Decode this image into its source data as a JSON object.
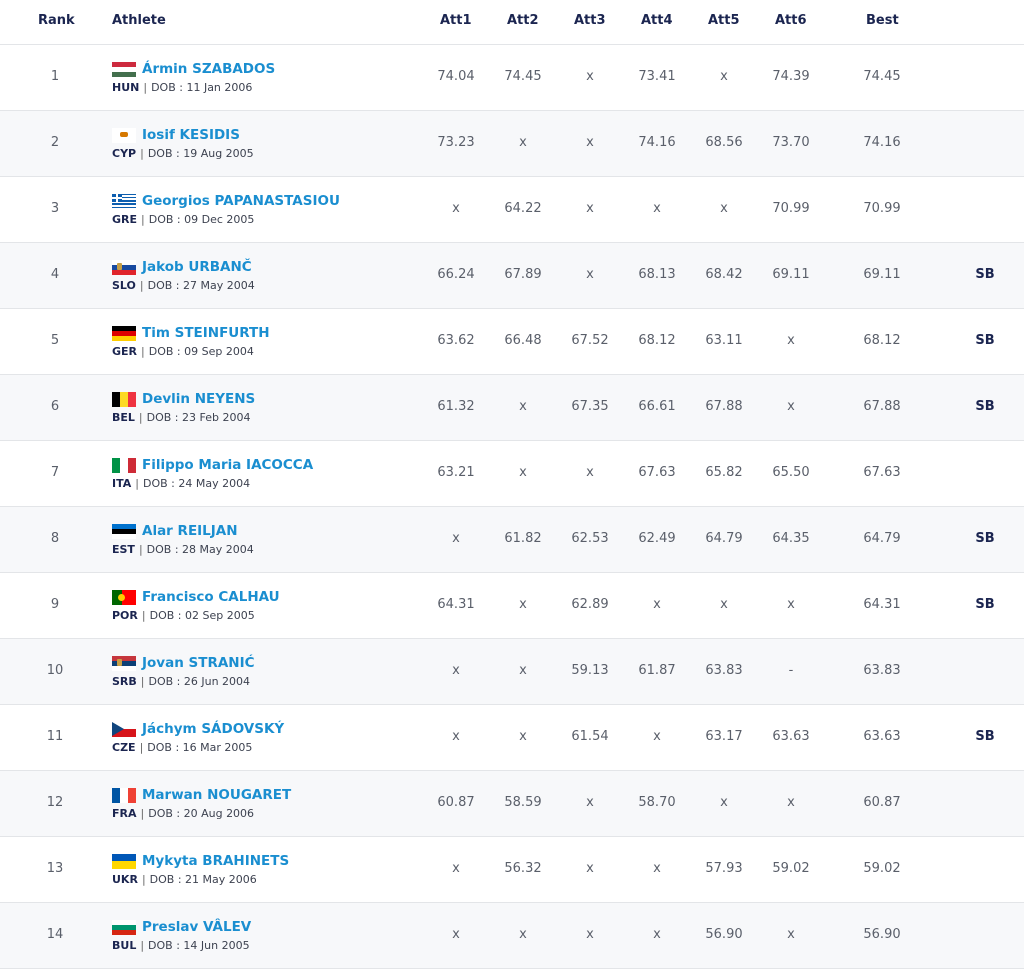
{
  "headers": {
    "rank": "Rank",
    "athlete": "Athlete",
    "att1": "Att1",
    "att2": "Att2",
    "att3": "Att3",
    "att4": "Att4",
    "att5": "Att5",
    "att6": "Att6",
    "best": "Best"
  },
  "dob_label": "DOB : ",
  "colors": {
    "name_link": "#1a8ed0",
    "header_text": "#1b2550",
    "cell_text": "#5a5f6a"
  },
  "rows": [
    {
      "rank": "1",
      "name": "Ármin SZABADOS",
      "nat": "HUN",
      "dob": "11 Jan 2006",
      "att": [
        "74.04",
        "74.45",
        "x",
        "73.41",
        "x",
        "74.39"
      ],
      "best": "74.45",
      "note": ""
    },
    {
      "rank": "2",
      "name": "Iosif KESIDIS",
      "nat": "CYP",
      "dob": "19 Aug 2005",
      "att": [
        "73.23",
        "x",
        "x",
        "74.16",
        "68.56",
        "73.70"
      ],
      "best": "74.16",
      "note": ""
    },
    {
      "rank": "3",
      "name": "Georgios PAPANASTASIOU",
      "nat": "GRE",
      "dob": "09 Dec 2005",
      "att": [
        "x",
        "64.22",
        "x",
        "x",
        "x",
        "70.99"
      ],
      "best": "70.99",
      "note": ""
    },
    {
      "rank": "4",
      "name": "Jakob URBANČ",
      "nat": "SLO",
      "dob": "27 May 2004",
      "att": [
        "66.24",
        "67.89",
        "x",
        "68.13",
        "68.42",
        "69.11"
      ],
      "best": "69.11",
      "note": "SB"
    },
    {
      "rank": "5",
      "name": "Tim STEINFURTH",
      "nat": "GER",
      "dob": "09 Sep 2004",
      "att": [
        "63.62",
        "66.48",
        "67.52",
        "68.12",
        "63.11",
        "x"
      ],
      "best": "68.12",
      "note": "SB"
    },
    {
      "rank": "6",
      "name": "Devlin NEYENS",
      "nat": "BEL",
      "dob": "23 Feb 2004",
      "att": [
        "61.32",
        "x",
        "67.35",
        "66.61",
        "67.88",
        "x"
      ],
      "best": "67.88",
      "note": "SB"
    },
    {
      "rank": "7",
      "name": "Filippo Maria IACOCCA",
      "nat": "ITA",
      "dob": "24 May 2004",
      "att": [
        "63.21",
        "x",
        "x",
        "67.63",
        "65.82",
        "65.50"
      ],
      "best": "67.63",
      "note": ""
    },
    {
      "rank": "8",
      "name": "Alar REILJAN",
      "nat": "EST",
      "dob": "28 May 2004",
      "att": [
        "x",
        "61.82",
        "62.53",
        "62.49",
        "64.79",
        "64.35"
      ],
      "best": "64.79",
      "note": "SB"
    },
    {
      "rank": "9",
      "name": "Francisco CALHAU",
      "nat": "POR",
      "dob": "02 Sep 2005",
      "att": [
        "64.31",
        "x",
        "62.89",
        "x",
        "x",
        "x"
      ],
      "best": "64.31",
      "note": "SB"
    },
    {
      "rank": "10",
      "name": "Jovan STRANIĆ",
      "nat": "SRB",
      "dob": "26 Jun 2004",
      "att": [
        "x",
        "x",
        "59.13",
        "61.87",
        "63.83",
        "-"
      ],
      "best": "63.83",
      "note": ""
    },
    {
      "rank": "11",
      "name": "Jáchym SÁDOVSKÝ",
      "nat": "CZE",
      "dob": "16 Mar 2005",
      "att": [
        "x",
        "x",
        "61.54",
        "x",
        "63.17",
        "63.63"
      ],
      "best": "63.63",
      "note": "SB"
    },
    {
      "rank": "12",
      "name": "Marwan NOUGARET",
      "nat": "FRA",
      "dob": "20 Aug 2006",
      "att": [
        "60.87",
        "58.59",
        "x",
        "58.70",
        "x",
        "x"
      ],
      "best": "60.87",
      "note": ""
    },
    {
      "rank": "13",
      "name": "Mykyta BRAHINETS",
      "nat": "UKR",
      "dob": "21 May 2006",
      "att": [
        "x",
        "56.32",
        "x",
        "x",
        "57.93",
        "59.02"
      ],
      "best": "59.02",
      "note": ""
    },
    {
      "rank": "14",
      "name": "Preslav VÂLEV",
      "nat": "BUL",
      "dob": "14 Jun 2005",
      "att": [
        "x",
        "x",
        "x",
        "x",
        "56.90",
        "x"
      ],
      "best": "56.90",
      "note": ""
    }
  ]
}
